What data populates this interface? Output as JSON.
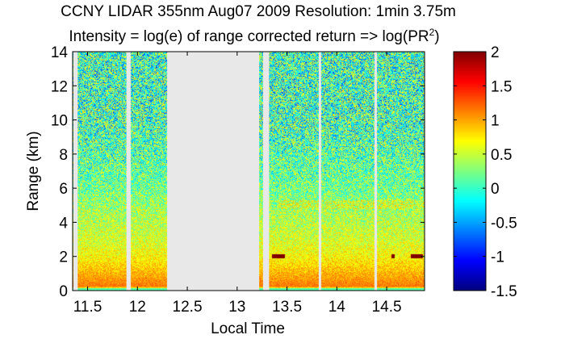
{
  "chart_data": {
    "type": "heatmap",
    "title_line1": "CCNY LIDAR 355nm Aug07 2009 Resolution: 1min 3.75m",
    "title_line2_prefix": "Intensity = log(e) of range corrected return => log(PR",
    "title_line2_superscript": "2",
    "title_line2_suffix": ")",
    "xlabel": "Local Time",
    "ylabel": "Range (km)",
    "xlim": [
      11.35,
      14.88
    ],
    "ylim": [
      0,
      14
    ],
    "x_ticks": [
      11.5,
      12,
      12.5,
      13,
      13.5,
      14,
      14.5
    ],
    "x_tick_labels": [
      "11.5",
      "12",
      "12.5",
      "13",
      "13.5",
      "14",
      "14.5"
    ],
    "y_ticks": [
      0,
      2,
      4,
      6,
      8,
      10,
      12,
      14
    ],
    "y_tick_labels": [
      "0",
      "2",
      "4",
      "6",
      "8",
      "10",
      "12",
      "14"
    ],
    "colorbar": {
      "range": [
        -1.5,
        2
      ],
      "ticks": [
        -1.5,
        -1,
        -0.5,
        0,
        0.5,
        1,
        1.5,
        2
      ],
      "tick_labels": [
        "-1.5",
        "-1",
        "-0.5",
        "0",
        "0.5",
        "1",
        "1.5",
        "2"
      ],
      "colormap": "jet"
    },
    "data_gaps_time": [
      [
        11.36,
        11.4
      ],
      [
        11.89,
        11.93
      ],
      [
        12.3,
        13.22
      ],
      [
        13.26,
        13.32
      ],
      [
        13.82,
        13.84
      ],
      [
        14.38,
        14.4
      ]
    ],
    "gap_color": "#e8e8e8",
    "intensity_profile": [
      {
        "range_km": 0.0,
        "value": 0.2
      },
      {
        "range_km": 0.25,
        "value": 1.15
      },
      {
        "range_km": 1.0,
        "value": 0.95
      },
      {
        "range_km": 2.0,
        "value": 0.7
      },
      {
        "range_km": 3.0,
        "value": 0.55
      },
      {
        "range_km": 5.0,
        "value": 0.35
      },
      {
        "range_km": 6.0,
        "value": 0.2
      },
      {
        "range_km": 9.0,
        "value": 0.05
      },
      {
        "range_km": 14.0,
        "value": 0.0
      }
    ],
    "cloud_features": [
      {
        "time_start": 13.35,
        "time_end": 13.48,
        "range_km": 2.0,
        "value": 2.0
      },
      {
        "time_start": 14.55,
        "time_end": 14.58,
        "range_km": 2.0,
        "value": 2.0
      },
      {
        "time_start": 14.74,
        "time_end": 14.86,
        "range_km": 2.0,
        "value": 2.0
      }
    ]
  }
}
